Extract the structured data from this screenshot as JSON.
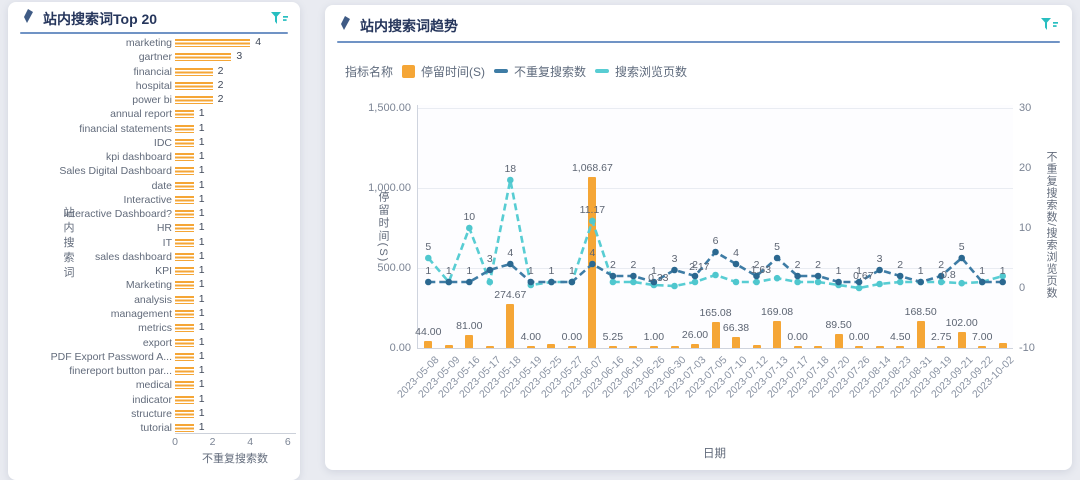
{
  "page": {
    "background": "#e9ebf1"
  },
  "left_panel": {
    "title": "站内搜索词Top 20",
    "header_icon": "quill-icon",
    "filter_icon": "filter-icon",
    "accent_color": "#7093c5"
  },
  "right_panel": {
    "title": "站内搜索词趋势",
    "header_icon": "quill-icon",
    "filter_icon": "filter-icon",
    "legend": {
      "title": "指标名称",
      "items": [
        {
          "label": "停留时间(S)",
          "color": "#F5A636",
          "type": "bar"
        },
        {
          "label": "不重复搜索数",
          "color": "#3E7CA5",
          "type": "line-dashed"
        },
        {
          "label": "搜索浏览页数",
          "color": "#58CDD3",
          "type": "line-dashed"
        }
      ]
    }
  },
  "chart_data": [
    {
      "type": "bar",
      "orientation": "horizontal",
      "title": "站内搜索词Top 20",
      "xlabel": "不重复搜索数",
      "ylabel": "站内搜索词",
      "xlim": [
        0,
        6
      ],
      "x_ticks": [
        "0",
        "2",
        "4",
        "6"
      ],
      "bar_color": "#F5A636",
      "bar_pattern": "horizontal-stripes",
      "grid": false,
      "categories": [
        "marketing",
        "gartner",
        "financial",
        "hospital",
        "power bi",
        "annual report",
        "financial statements",
        "IDC",
        "kpi dashboard",
        "Sales Digital Dashboard",
        "date",
        "Interactive",
        "Interactive Dashboard?",
        "HR",
        "IT",
        "sales dashboard",
        "KPI",
        "Marketing",
        "analysis",
        "management",
        "metrics",
        "export",
        "PDF Export Password A...",
        "finereport button par...",
        "medical",
        "indicator",
        "structure",
        "tutorial"
      ],
      "values": [
        4,
        3,
        2,
        2,
        2,
        1,
        1,
        1,
        1,
        1,
        1,
        1,
        1,
        1,
        1,
        1,
        1,
        1,
        1,
        1,
        1,
        1,
        1,
        1,
        1,
        1,
        1,
        1
      ]
    },
    {
      "type": "combo-bar-line",
      "xlabel": "日期",
      "x": [
        "2023-05-08",
        "2023-05-09",
        "2023-05-16",
        "2023-05-17",
        "2023-05-18",
        "2023-05-19",
        "2023-05-25",
        "2023-05-27",
        "2023-06-07",
        "2023-06-16",
        "2023-06-19",
        "2023-06-26",
        "2023-06-30",
        "2023-07-03",
        "2023-07-05",
        "2023-07-10",
        "2023-07-12",
        "2023-07-13",
        "2023-07-17",
        "2023-07-18",
        "2023-07-20",
        "2023-07-26",
        "2023-08-14",
        "2023-08-23",
        "2023-08-31",
        "2023-09-19",
        "2023-09-21",
        "2023-09-22",
        "2023-10-02"
      ],
      "left_axis": {
        "title": "停留时间(S)",
        "range": [
          0,
          1500
        ],
        "ticks": [
          "0.00",
          "500.00",
          "1,000.00",
          "1,500.00"
        ]
      },
      "right_axis": {
        "title": "不重复搜索数/搜索浏览页数",
        "range": [
          -10,
          30
        ],
        "ticks": [
          "30",
          "20",
          "10",
          "0",
          "-10"
        ]
      },
      "legend_position": "top-left",
      "grid": true,
      "series": [
        {
          "name": "停留时间(S)",
          "type": "bar",
          "axis": "left",
          "color": "#F5A636",
          "values": [
            44,
            20,
            81,
            10,
            274.67,
            4,
            25,
            0,
            1068.67,
            5.25,
            10,
            1,
            10,
            26,
            165.08,
            66.38,
            20,
            169.08,
            0,
            10,
            89.5,
            0,
            10,
            4.5,
            168.5,
            2.75,
            102,
            7,
            30
          ],
          "value_labels": [
            "44.00",
            null,
            "81.00",
            null,
            "274.67",
            "4.00",
            null,
            "0.00",
            "1,068.67",
            "5.25",
            null,
            "1.00",
            null,
            "26.00",
            "165.08",
            "66.38",
            null,
            "169.08",
            "0.00",
            null,
            "89.50",
            "0.00",
            null,
            "4.50",
            "168.50",
            "2.75",
            "102.00",
            "7.00",
            null
          ]
        },
        {
          "name": "不重复搜索数",
          "type": "line",
          "style": "dashed",
          "axis": "right",
          "color": "#3E7CA5",
          "dot_color": "#2B6890",
          "values": [
            1,
            1,
            1,
            3,
            4,
            1,
            1,
            1,
            4,
            2,
            2,
            1,
            3,
            2,
            6,
            4,
            2,
            5,
            2,
            2,
            1,
            1,
            3,
            2,
            1,
            2,
            5,
            1,
            1
          ],
          "value_labels": [
            "1",
            "1",
            "1",
            "3",
            "4",
            "1",
            "1",
            "1",
            "4",
            "2",
            "2",
            "1",
            "3",
            "2",
            "6",
            "4",
            "2",
            "5",
            "2",
            "2",
            "1",
            "1",
            "3",
            "2",
            "1",
            "2",
            "5",
            "1",
            "1"
          ]
        },
        {
          "name": "搜索浏览页数",
          "type": "line",
          "style": "dashed",
          "axis": "right",
          "color": "#58CDD3",
          "dot_color": "#4FC7CE",
          "values": [
            5,
            1,
            10,
            1,
            18,
            0.5,
            1,
            1,
            11.17,
            1,
            1,
            0.5,
            0.33,
            1,
            2.17,
            1,
            1,
            1.63,
            1,
            1,
            0.5,
            0,
            0.67,
            1,
            1,
            1,
            0.8,
            1,
            2
          ],
          "value_labels": [
            "5",
            null,
            "10",
            null,
            "18",
            null,
            null,
            null,
            "11.17",
            null,
            null,
            null,
            "0.33",
            null,
            "2.17",
            null,
            null,
            "1.63",
            null,
            null,
            null,
            null,
            "0.67",
            null,
            null,
            null,
            "0.8",
            null,
            null
          ]
        }
      ]
    }
  ]
}
